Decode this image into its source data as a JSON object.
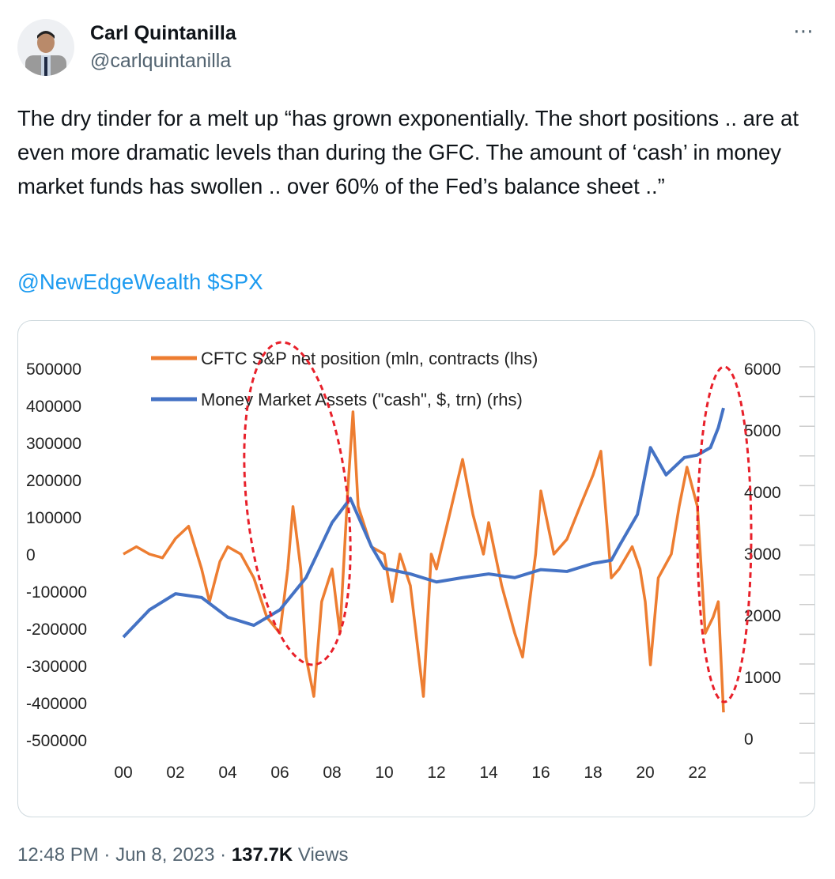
{
  "author": {
    "name": "Carl Quintanilla",
    "handle": "@carlquintanilla"
  },
  "more_icon": "⋯",
  "tweet": {
    "text": "The dry tinder for a melt up “has grown exponentially. The short positions .. are at even more dramatic levels than during the GFC. The amount of ‘cash’ in money market funds has swollen .. over 60% of the Fed’s balance sheet ..”",
    "mention": "@NewEdgeWealth",
    "cashtag": "$SPX"
  },
  "footer": {
    "time": "12:48 PM",
    "sep": " · ",
    "date": "Jun 8, 2023",
    "views_count": "137.7K",
    "views_label": "Views"
  },
  "colors": {
    "orange": "#ed7d31",
    "blue": "#4472c4",
    "ellipse": "#e8202a",
    "link": "#1d9bf0"
  },
  "chart_data": {
    "type": "line",
    "title": "",
    "x_tick_labels": [
      "00",
      "02",
      "04",
      "06",
      "08",
      "10",
      "12",
      "14",
      "16",
      "18",
      "20",
      "22"
    ],
    "xlim": [
      2000,
      2023.5
    ],
    "y_left": {
      "ylim": [
        -500000,
        500000
      ],
      "tick_labels": [
        "500000",
        "400000",
        "300000",
        "200000",
        "100000",
        "0",
        "-100000",
        "-200000",
        "-300000",
        "-400000",
        "-500000"
      ]
    },
    "y_right": {
      "ylim": [
        0,
        6000
      ],
      "tick_labels": [
        "6000",
        "5000",
        "4000",
        "3000",
        "2000",
        "1000",
        "0"
      ]
    },
    "legend": {
      "placement": "top",
      "entries": [
        "CFTC S&P net position (mln, contracts (lhs)",
        "Money Market Assets (\"cash\", $, trn) (rhs)"
      ]
    },
    "series": [
      {
        "name": "CFTC S&P net position (mln, contracts (lhs)",
        "axis": "left",
        "x": [
          2000,
          2000.5,
          2001,
          2001.5,
          2002,
          2002.5,
          2003,
          2003.3,
          2003.7,
          2004,
          2004.5,
          2005,
          2005.5,
          2006,
          2006.3,
          2006.5,
          2006.8,
          2007,
          2007.3,
          2007.6,
          2008,
          2008.3,
          2008.6,
          2008.8,
          2009,
          2009.5,
          2010,
          2010.3,
          2010.6,
          2011,
          2011.5,
          2011.8,
          2012,
          2012.5,
          2013,
          2013.4,
          2013.8,
          2014,
          2014.5,
          2015,
          2015.3,
          2015.8,
          2016,
          2016.5,
          2017,
          2017.5,
          2018,
          2018.3,
          2018.7,
          2019,
          2019.5,
          2019.8,
          2020,
          2020.2,
          2020.5,
          2021,
          2021.3,
          2021.6,
          2022,
          2022.3,
          2022.6,
          2022.8,
          2023
        ],
        "values": [
          0,
          20000,
          0,
          -10000,
          42000,
          75000,
          -40000,
          -128000,
          -20000,
          20000,
          0,
          -64000,
          -170000,
          -213000,
          -40000,
          128000,
          -40000,
          -277000,
          -383000,
          -128000,
          -40000,
          -213000,
          170000,
          383000,
          128000,
          20000,
          0,
          -128000,
          0,
          -85000,
          -383000,
          0,
          -40000,
          106000,
          255000,
          106000,
          0,
          85000,
          -85000,
          -213000,
          -277000,
          0,
          170000,
          0,
          40000,
          128000,
          213000,
          277000,
          -64000,
          -40000,
          20000,
          -40000,
          -128000,
          -298000,
          -64000,
          0,
          128000,
          234000,
          128000,
          -213000,
          -170000,
          -128000,
          -426000
        ]
      },
      {
        "name": "Money Market Assets (\"cash\", $, trn) (rhs)",
        "axis": "right",
        "x": [
          2000,
          2001,
          2002,
          2003,
          2004,
          2005,
          2006,
          2007,
          2008,
          2008.7,
          2009.5,
          2010,
          2011,
          2012,
          2013,
          2014,
          2015,
          2016,
          2017,
          2018,
          2018.7,
          2019,
          2019.7,
          2020.2,
          2020.8,
          2021.5,
          2022,
          2022.5,
          2022.8,
          2023
        ],
        "values": [
          1660,
          2100,
          2360,
          2300,
          1980,
          1850,
          2100,
          2620,
          3510,
          3900,
          3130,
          2770,
          2680,
          2550,
          2620,
          2680,
          2620,
          2750,
          2720,
          2850,
          2900,
          3130,
          3640,
          4720,
          4280,
          4560,
          4600,
          4720,
          5040,
          5360
        ]
      }
    ]
  }
}
